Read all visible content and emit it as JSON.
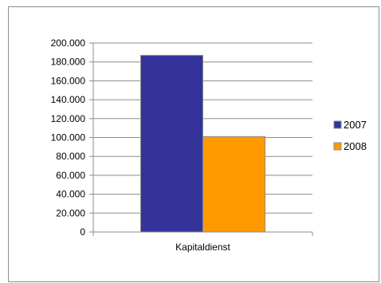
{
  "chart_data": {
    "type": "bar",
    "categories": [
      "Kapitaldienst"
    ],
    "series": [
      {
        "name": "2007",
        "values": [
          187000
        ],
        "color": "#333399"
      },
      {
        "name": "2008",
        "values": [
          101000
        ],
        "color": "#FF9900"
      }
    ],
    "y_ticks": [
      "0",
      "20.000",
      "40.000",
      "60.000",
      "80.000",
      "100.000",
      "120.000",
      "140.000",
      "160.000",
      "180.000",
      "200.000"
    ],
    "ylim": [
      0,
      200000
    ],
    "grid": true,
    "legend_position": "right"
  }
}
